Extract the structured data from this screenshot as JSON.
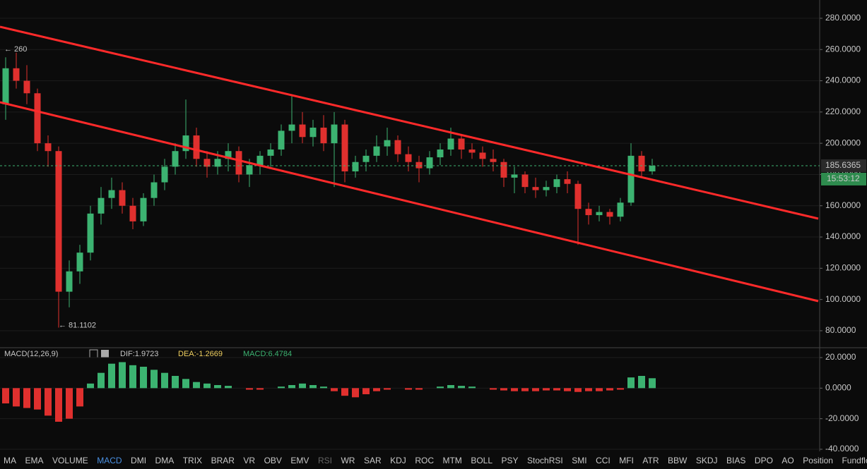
{
  "chart_data": [
    {
      "type": "candlestick",
      "up_color": "#3cb371",
      "down_color": "#e0302e",
      "ohlc": [
        [
          225,
          255,
          215,
          248
        ],
        [
          248,
          258,
          235,
          240
        ],
        [
          240,
          250,
          225,
          232
        ],
        [
          232,
          235,
          195,
          200
        ],
        [
          200,
          205,
          185,
          195
        ],
        [
          195,
          198,
          82,
          105
        ],
        [
          105,
          125,
          95,
          118
        ],
        [
          118,
          135,
          110,
          130
        ],
        [
          130,
          160,
          125,
          155
        ],
        [
          155,
          172,
          148,
          165
        ],
        [
          165,
          178,
          158,
          170
        ],
        [
          170,
          175,
          155,
          160
        ],
        [
          160,
          165,
          145,
          150
        ],
        [
          150,
          168,
          147,
          165
        ],
        [
          165,
          180,
          160,
          175
        ],
        [
          175,
          190,
          170,
          185
        ],
        [
          185,
          200,
          180,
          195
        ],
        [
          195,
          228,
          190,
          205
        ],
        [
          205,
          210,
          185,
          190
        ],
        [
          190,
          195,
          178,
          185
        ],
        [
          185,
          195,
          180,
          190
        ],
        [
          190,
          200,
          182,
          195
        ],
        [
          195,
          198,
          175,
          180
        ],
        [
          180,
          190,
          172,
          186
        ],
        [
          186,
          195,
          180,
          192
        ],
        [
          192,
          200,
          185,
          196
        ],
        [
          196,
          212,
          192,
          208
        ],
        [
          208,
          230,
          200,
          212
        ],
        [
          212,
          220,
          200,
          204
        ],
        [
          204,
          215,
          198,
          210
        ],
        [
          210,
          218,
          195,
          200
        ],
        [
          200,
          220,
          172,
          212
        ],
        [
          212,
          215,
          175,
          182
        ],
        [
          182,
          192,
          178,
          188
        ],
        [
          188,
          196,
          182,
          192
        ],
        [
          192,
          205,
          188,
          198
        ],
        [
          198,
          210,
          192,
          202
        ],
        [
          202,
          205,
          188,
          193
        ],
        [
          193,
          198,
          182,
          188
        ],
        [
          188,
          192,
          175,
          184
        ],
        [
          184,
          195,
          180,
          191
        ],
        [
          191,
          200,
          186,
          196
        ],
        [
          196,
          210,
          192,
          203
        ],
        [
          203,
          206,
          190,
          196
        ],
        [
          196,
          200,
          190,
          194
        ],
        [
          194,
          198,
          185,
          190
        ],
        [
          190,
          196,
          182,
          188
        ],
        [
          188,
          190,
          172,
          178
        ],
        [
          178,
          185,
          168,
          180
        ],
        [
          180,
          182,
          168,
          172
        ],
        [
          172,
          178,
          165,
          170
        ],
        [
          170,
          176,
          166,
          172
        ],
        [
          172,
          180,
          168,
          177
        ],
        [
          177,
          182,
          168,
          174
        ],
        [
          174,
          176,
          135,
          158
        ],
        [
          158,
          162,
          148,
          154
        ],
        [
          154,
          160,
          150,
          156
        ],
        [
          156,
          158,
          148,
          153
        ],
        [
          153,
          165,
          150,
          162
        ],
        [
          162,
          200,
          160,
          192
        ],
        [
          192,
          195,
          178,
          182
        ],
        [
          182,
          190,
          180,
          185.6
        ]
      ],
      "ylim": [
        69.6,
        291.7
      ],
      "yticks": [
        {
          "value": 80,
          "label": "80.0000"
        },
        {
          "value": 100,
          "label": "100.0000"
        },
        {
          "value": 120,
          "label": "120.0000"
        },
        {
          "value": 140,
          "label": "140.0000"
        },
        {
          "value": 160,
          "label": "160.0000"
        },
        {
          "value": 180,
          "label": "180.0000"
        },
        {
          "value": 200,
          "label": "200.0000"
        },
        {
          "value": 220,
          "label": "220.0000"
        },
        {
          "value": 240,
          "label": "240.0000"
        },
        {
          "value": 260,
          "label": "260.0000"
        },
        {
          "value": 280,
          "label": "280.0000"
        }
      ],
      "high": {
        "value": 260,
        "label": "← 260"
      },
      "low": {
        "value": 81.1102,
        "label": "← 81.1102"
      },
      "last_price": {
        "value": 185.6365,
        "label": "185.6365"
      },
      "countdown": "15:53:12",
      "grid": true
    },
    {
      "type": "bar",
      "title": "MACD(12,26,9)",
      "dif": "DIF:1.9723",
      "dea": "DEA:-1.2669",
      "macd": "MACD:6.4784",
      "up_color": "#3cb371",
      "down_color": "#e0302e",
      "values": [
        -10,
        -12,
        -13,
        -14,
        -18,
        -22,
        -20,
        -12,
        3,
        10,
        16,
        17,
        15,
        14,
        12,
        10,
        8,
        6,
        4,
        3,
        2,
        1.5,
        0,
        -1,
        -1,
        0,
        1,
        2,
        3,
        2,
        1,
        -2,
        -5,
        -6,
        -4,
        -2,
        -1,
        0,
        -1,
        -1,
        0,
        1,
        2,
        1.5,
        1,
        0,
        -1,
        -1.5,
        -2,
        -2,
        -2,
        -1.5,
        -1.5,
        -2,
        -2.5,
        -2,
        -2,
        -1.5,
        -1,
        7,
        8,
        6.4784
      ],
      "ylim": [
        -40,
        26
      ],
      "yticks": [
        {
          "value": 20,
          "label": "20.0000"
        },
        {
          "value": 0,
          "label": "0.0000"
        },
        {
          "value": -20,
          "label": "-20.0000"
        },
        {
          "value": -40,
          "label": "-40.0000"
        }
      ],
      "grid": true
    }
  ],
  "toolbar": {
    "tabs": [
      "MA",
      "EMA",
      "VOLUME",
      "MACD",
      "DMI",
      "DMA",
      "TRIX",
      "BRAR",
      "VR",
      "OBV",
      "EMV",
      "RSI",
      "WR",
      "SAR",
      "KDJ",
      "ROC",
      "MTM",
      "BOLL",
      "PSY",
      "StochRSI",
      "SMI",
      "CCI",
      "MFI",
      "ATR",
      "BBW",
      "SKDJ",
      "BIAS",
      "DPO",
      "AO",
      "Position",
      "Fundflow"
    ],
    "active_index": 3,
    "disabled_index": 11
  }
}
